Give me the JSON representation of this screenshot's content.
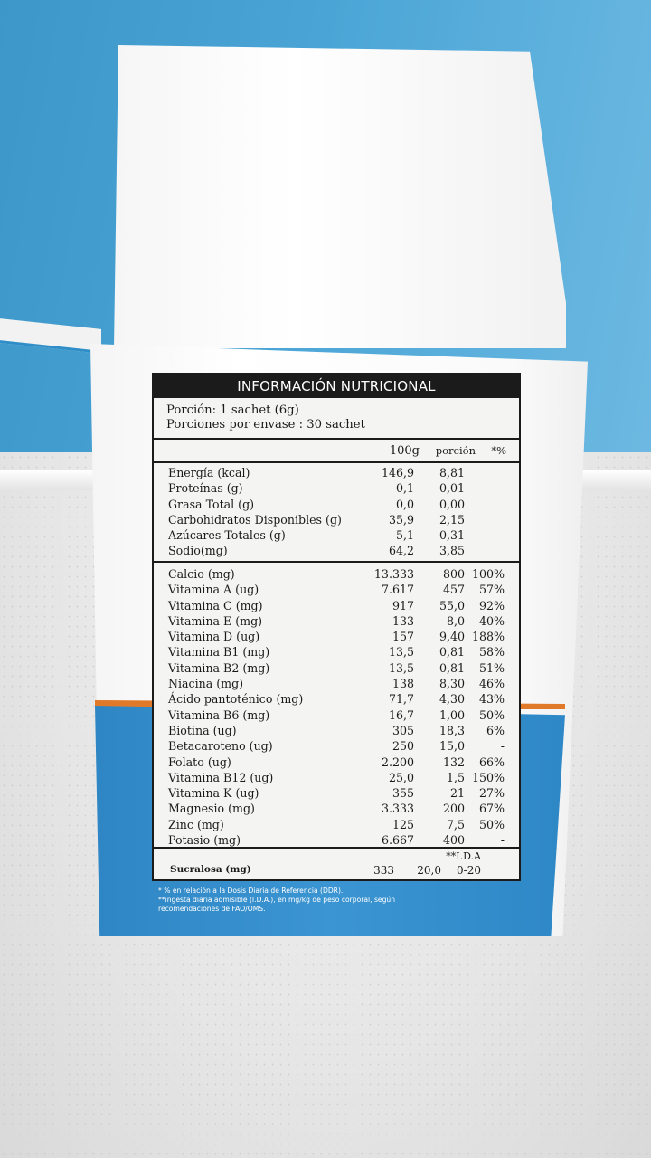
{
  "label": {
    "title": "INFORMACIÓN NUTRICIONAL",
    "serving_size": "Porción: 1 sachet (6g)",
    "servings_per_container": "Porciones por envase : 30 sachet",
    "columns": {
      "per100g": "100g",
      "per_serving": "porción",
      "percent": "*%"
    },
    "macros": [
      {
        "name": "Energía (kcal)",
        "per100g": "146,9",
        "per_serving": "8,81",
        "percent": ""
      },
      {
        "name": "Proteínas (g)",
        "per100g": "0,1",
        "per_serving": "0,01",
        "percent": ""
      },
      {
        "name": "Grasa Total (g)",
        "per100g": "0,0",
        "per_serving": "0,00",
        "percent": ""
      },
      {
        "name": "Carbohidratos Disponibles (g)",
        "per100g": "35,9",
        "per_serving": "2,15",
        "percent": ""
      },
      {
        "name": "Azúcares Totales (g)",
        "per100g": "5,1",
        "per_serving": "0,31",
        "percent": ""
      },
      {
        "name": "Sodio(mg)",
        "per100g": "64,2",
        "per_serving": "3,85",
        "percent": ""
      }
    ],
    "micros": [
      {
        "name": "Calcio (mg)",
        "per100g": "13.333",
        "per_serving": "800",
        "percent": "100%"
      },
      {
        "name": "Vitamina A (ug)",
        "per100g": "7.617",
        "per_serving": "457",
        "percent": "57%"
      },
      {
        "name": "Vitamina C (mg)",
        "per100g": "917",
        "per_serving": "55,0",
        "percent": "92%"
      },
      {
        "name": "Vitamina E (mg)",
        "per100g": "133",
        "per_serving": "8,0",
        "percent": "40%"
      },
      {
        "name": "Vitamina D (ug)",
        "per100g": "157",
        "per_serving": "9,40",
        "percent": "188%"
      },
      {
        "name": "Vitamina B1 (mg)",
        "per100g": "13,5",
        "per_serving": "0,81",
        "percent": "58%"
      },
      {
        "name": "Vitamina B2 (mg)",
        "per100g": "13,5",
        "per_serving": "0,81",
        "percent": "51%"
      },
      {
        "name": "Niacina (mg)",
        "per100g": "138",
        "per_serving": "8,30",
        "percent": "46%"
      },
      {
        "name": "Ácido pantoténico (mg)",
        "per100g": "71,7",
        "per_serving": "4,30",
        "percent": "43%"
      },
      {
        "name": "Vitamina B6 (mg)",
        "per100g": "16,7",
        "per_serving": "1,00",
        "percent": "50%"
      },
      {
        "name": "Biotina (ug)",
        "per100g": "305",
        "per_serving": "18,3",
        "percent": "6%"
      },
      {
        "name": "Betacaroteno (ug)",
        "per100g": "250",
        "per_serving": "15,0",
        "percent": "-"
      },
      {
        "name": "Folato (ug)",
        "per100g": "2.200",
        "per_serving": "132",
        "percent": "66%"
      },
      {
        "name": "Vitamina B12 (ug)",
        "per100g": "25,0",
        "per_serving": "1,5",
        "percent": "150%"
      },
      {
        "name": "Vitamina K (ug)",
        "per100g": "355",
        "per_serving": "21",
        "percent": "27%"
      },
      {
        "name": "Magnesio (mg)",
        "per100g": "3.333",
        "per_serving": "200",
        "percent": "67%"
      },
      {
        "name": "Zinc (mg)",
        "per100g": "125",
        "per_serving": "7,5",
        "percent": "50%"
      },
      {
        "name": "Potasio (mg)",
        "per100g": "6.667",
        "per_serving": "400",
        "percent": "-"
      }
    ],
    "ida_header": "**I.D.A",
    "sucralose": {
      "name": "Sucralosa (mg)",
      "per100g": "333",
      "per_serving": "20,0",
      "ida": "0-20"
    },
    "footnotes": [
      "* % en relación a la Dosis Diaria de Referencia (DDR).",
      "**ingesta diaria admisible (I.D.A.), en mg/kg de peso corporal, según",
      "recomendaciones de FAO/OMS."
    ]
  },
  "colors": {
    "wall": "#4aa5d6",
    "box_blue": "#3b95d2",
    "box_orange_band": "#e07a2a",
    "label_header": "#1b1b1b"
  }
}
